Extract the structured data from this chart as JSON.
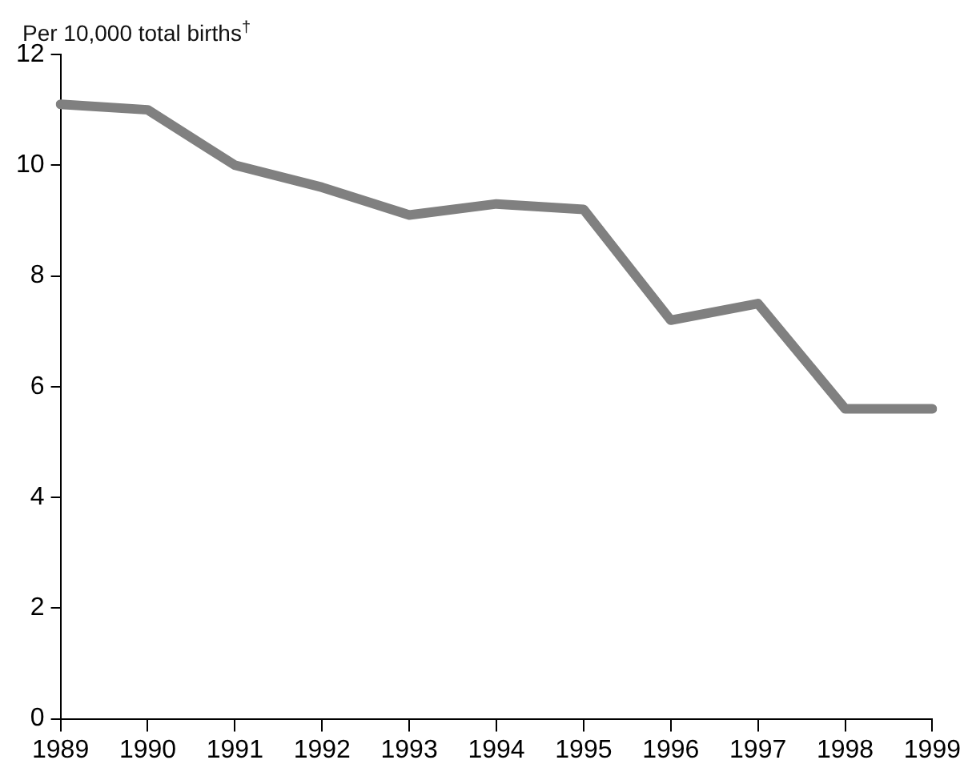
{
  "chart_data": {
    "type": "line",
    "ylabel": "Per 10,000 total births$^{†}$",
    "categories": [
      "1989",
      "1990",
      "1991",
      "1992",
      "1993",
      "1994",
      "1995",
      "1996",
      "1997",
      "1998",
      "1999"
    ],
    "series": [
      {
        "color": "#808080",
        "values": [
          11.1,
          11.0,
          10.0,
          9.6,
          9.1,
          9.3,
          9.2,
          7.2,
          7.5,
          5.6,
          5.6
        ]
      }
    ],
    "ylim": [
      0,
      12
    ],
    "yticks": [
      0,
      2,
      4,
      6,
      8,
      10,
      12
    ],
    "grid": false,
    "legend": false,
    "marker": "none",
    "line_style": "solid"
  }
}
